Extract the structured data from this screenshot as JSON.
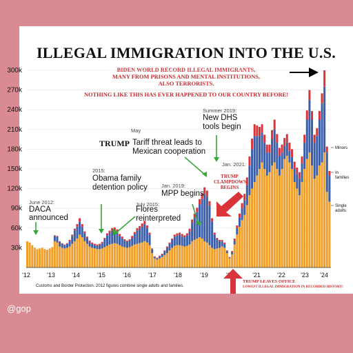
{
  "handle": "@gop",
  "title": "ILLEGAL IMMIGRATION INTO THE U.S.",
  "subtitle_lines": [
    "BIDEN WORLD RECORD ILLEGAL IMMIGRANTS,",
    "MANY FROM PRISONS AND MENTAL INSTITUTIONS,",
    "ALSO TERRORISTS."
  ],
  "subtitle2": "NOTHING LIKE THIS HAS EVER HAPPENED TO OUR COUNTRY BEFORE!",
  "footer_note": "Customs and Border Protection. 2012 figures combine single adults and families.",
  "annotations": {
    "daca_date": "June 2012:",
    "daca": "DACA announced",
    "obama_date": "2015:",
    "obama": "Obama family detention policy",
    "flores_date": "July 2015:",
    "flores": "Flores reinterpreted",
    "may": "May",
    "tariff_bold": "TRUMP",
    "tariff": "Tariff threat leads to Mexican cooperation",
    "mpp_date": "Jan. 2019:",
    "mpp": "MPP begins",
    "dhs_date": "Summer 2019:",
    "dhs": "New DHS tools begin",
    "clampdown_date": "Jan. 2021:",
    "clampdown": "TRUMP CLAMPDOWN BEGINS",
    "leave_office": "TRUMP LEAVES OFFICE",
    "lowest": "LOWEST ILLEGAL IMMIGRATION IN RECORDED HISTORY!"
  },
  "colors": {
    "single_adults": "#f0a02a",
    "families": "#3a5fa8",
    "minors": "#d8343a",
    "arrow_red": "#d8343a"
  },
  "chart_data": {
    "type": "bar",
    "stacked": true,
    "ylim": [
      0,
      300000
    ],
    "yticks": [
      "30k",
      "60k",
      "90k",
      "120k",
      "150k",
      "180k",
      "210k",
      "240k",
      "270k",
      "300k"
    ],
    "xticks": [
      "'12",
      "'13",
      "'14",
      "'15",
      "'16",
      "'17",
      "'18",
      "'19",
      "'20",
      "'21",
      "'22",
      "'23",
      "'24"
    ],
    "legend": [
      "Minors",
      "In families",
      "Single adults"
    ],
    "series": [
      {
        "name": "Single adults",
        "values": [
          40000,
          38000,
          34000,
          30000,
          28000,
          29000,
          30000,
          28000,
          27000,
          29000,
          31000,
          40000,
          38000,
          32000,
          30000,
          29000,
          30000,
          32000,
          36000,
          40000,
          44000,
          50000,
          46000,
          40000,
          36000,
          32000,
          30000,
          29000,
          28000,
          28000,
          29000,
          31000,
          33000,
          35000,
          36000,
          37000,
          36000,
          34000,
          32000,
          31000,
          30000,
          31000,
          33000,
          35000,
          36000,
          37000,
          38000,
          40000,
          38000,
          34000,
          22000,
          14000,
          12000,
          14000,
          16000,
          19000,
          22000,
          26000,
          30000,
          33000,
          34000,
          34000,
          33000,
          32000,
          33000,
          35000,
          40000,
          42000,
          44000,
          46000,
          44000,
          40000,
          38000,
          34000,
          30000,
          28000,
          29000,
          30000,
          32000,
          30000,
          22000,
          14000,
          20000,
          35000,
          50000,
          62000,
          72000,
          80000,
          95000,
          110000,
          120000,
          130000,
          140000,
          150000,
          160000,
          150000,
          140000,
          145000,
          155000,
          160000,
          150000,
          140000,
          150000,
          165000,
          170000,
          160000,
          150000,
          130000,
          120000,
          110000,
          130000,
          150000,
          165000,
          175000,
          155000,
          135000,
          140000,
          155000,
          160000,
          175000,
          115000,
          100000
        ]
      },
      {
        "name": "In families",
        "values": [
          0,
          0,
          0,
          0,
          0,
          0,
          0,
          0,
          0,
          0,
          0,
          8000,
          9000,
          7000,
          6000,
          5000,
          6000,
          8000,
          12000,
          16000,
          18000,
          20000,
          16000,
          12000,
          9000,
          7000,
          6000,
          5000,
          5000,
          6000,
          8000,
          12000,
          16000,
          18000,
          20000,
          20000,
          18000,
          14000,
          12000,
          10000,
          9000,
          10000,
          12000,
          16000,
          20000,
          22000,
          24000,
          26000,
          22000,
          16000,
          6000,
          2000,
          2000,
          3000,
          4000,
          6000,
          8000,
          10000,
          12000,
          14000,
          15000,
          16000,
          15000,
          14000,
          16000,
          20000,
          28000,
          34000,
          40000,
          50000,
          60000,
          72000,
          70000,
          60000,
          40000,
          22000,
          14000,
          10000,
          8000,
          6000,
          3000,
          1000,
          3000,
          6000,
          10000,
          14000,
          18000,
          22000,
          30000,
          45000,
          60000,
          70000,
          60000,
          50000,
          45000,
          40000,
          35000,
          30000,
          40000,
          50000,
          40000,
          30000,
          25000,
          20000,
          20000,
          18000,
          18000,
          20000,
          22000,
          25000,
          28000,
          40000,
          60000,
          80000,
          70000,
          55000,
          60000,
          70000,
          90000,
          100000,
          60000,
          40000
        ]
      },
      {
        "name": "Minors",
        "values": [
          0,
          0,
          0,
          0,
          0,
          0,
          0,
          0,
          0,
          0,
          0,
          1000,
          1000,
          1000,
          1000,
          1000,
          1000,
          2000,
          2000,
          3000,
          4000,
          5000,
          4000,
          3000,
          2000,
          2000,
          2000,
          2000,
          2000,
          2000,
          2000,
          2000,
          3000,
          3000,
          4000,
          4000,
          4000,
          3000,
          3000,
          2000,
          2000,
          2000,
          3000,
          3000,
          4000,
          4000,
          5000,
          5000,
          4000,
          3000,
          1000,
          1000,
          1000,
          1000,
          1000,
          1000,
          2000,
          2000,
          2000,
          3000,
          3000,
          3000,
          3000,
          3000,
          3000,
          4000,
          5000,
          6000,
          7000,
          8000,
          9000,
          10000,
          9000,
          7000,
          5000,
          3000,
          2000,
          2000,
          2000,
          2000,
          1000,
          1000,
          2000,
          3000,
          4000,
          6000,
          8000,
          10000,
          12000,
          14000,
          16000,
          18000,
          16000,
          14000,
          13000,
          12000,
          12000,
          12000,
          14000,
          15000,
          13000,
          12000,
          12000,
          12000,
          13000,
          12000,
          12000,
          11000,
          10000,
          10000,
          11000,
          12000,
          14000,
          15000,
          13000,
          12000,
          12000,
          13000,
          15000,
          25000,
          9000,
          7000
        ]
      }
    ]
  }
}
